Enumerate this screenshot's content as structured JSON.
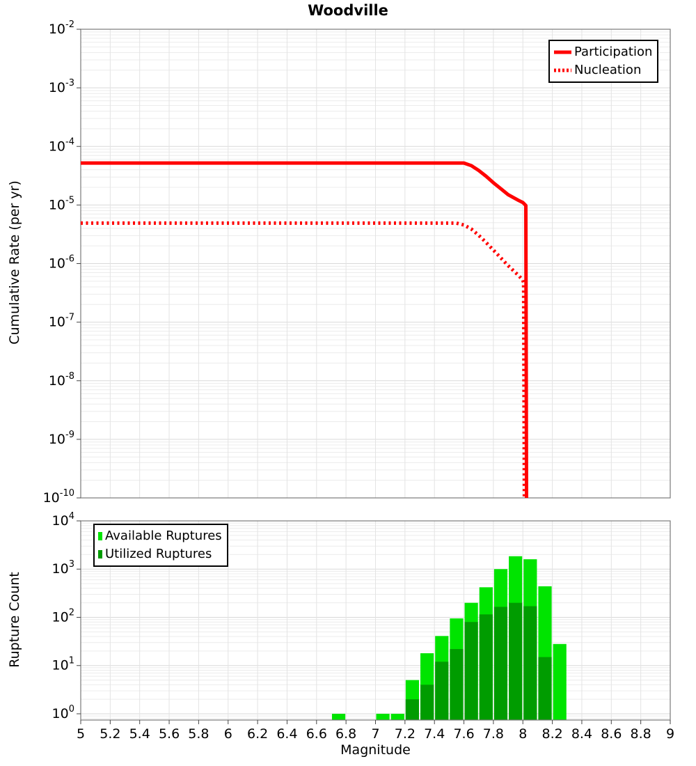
{
  "title": "Woodville",
  "chart_data": [
    {
      "type": "line",
      "title": "Woodville",
      "ylabel": "Cumulative Rate (per yr)",
      "xlabel": "",
      "xlim": [
        5,
        9
      ],
      "ylim": [
        1e-10,
        0.01
      ],
      "ylog": true,
      "grid": true,
      "x_tick_step": 0.2,
      "y_tick_exponents": [
        -2,
        -3,
        -4,
        -5,
        -6,
        -7,
        -8,
        -9,
        -10
      ],
      "legend_position": "top-right",
      "series": [
        {
          "name": "Participation",
          "color": "#ff0000",
          "style": "solid",
          "points": [
            [
              5.0,
              5.2e-05
            ],
            [
              7.6,
              5.2e-05
            ],
            [
              7.65,
              4.7e-05
            ],
            [
              7.7,
              3.9e-05
            ],
            [
              7.75,
              3.1e-05
            ],
            [
              7.8,
              2.4e-05
            ],
            [
              7.85,
              1.9e-05
            ],
            [
              7.9,
              1.5e-05
            ],
            [
              7.97,
              1.2e-05
            ],
            [
              8.0,
              1.1e-05
            ],
            [
              8.02,
              9.8e-06
            ],
            [
              8.025,
              1e-10
            ]
          ]
        },
        {
          "name": "Nucleation",
          "color": "#ff0000",
          "style": "dotted",
          "points": [
            [
              5.0,
              4.9e-06
            ],
            [
              7.55,
              4.9e-06
            ],
            [
              7.6,
              4.55e-06
            ],
            [
              7.65,
              3.9e-06
            ],
            [
              7.7,
              3.05e-06
            ],
            [
              7.75,
              2.3e-06
            ],
            [
              7.8,
              1.7e-06
            ],
            [
              7.85,
              1.25e-06
            ],
            [
              7.9,
              9.2e-07
            ],
            [
              7.97,
              6.3e-07
            ],
            [
              8.0,
              5.2e-07
            ],
            [
              8.005,
              4.7e-07
            ],
            [
              8.01,
              1e-10
            ]
          ]
        }
      ]
    },
    {
      "type": "bar",
      "title": "",
      "ylabel": "Rupture Count",
      "xlabel": "Magnitude",
      "xlim": [
        5,
        9
      ],
      "ylim": [
        1,
        10000
      ],
      "ylog": true,
      "grid": true,
      "bin_width": 0.1,
      "x_tick_step": 0.2,
      "x_tick_labels": [
        "5",
        "5.2",
        "5.4",
        "5.6",
        "5.8",
        "6",
        "6.2",
        "6.4",
        "6.6",
        "6.8",
        "7",
        "7.2",
        "7.4",
        "7.6",
        "7.8",
        "8",
        "8.2",
        "8.4",
        "8.6",
        "8.8",
        "9"
      ],
      "y_tick_exponents": [
        4,
        3,
        2,
        1,
        0
      ],
      "legend_position": "top-left",
      "series": [
        {
          "name": "Available Ruptures",
          "color": "#00e400",
          "bins": [
            [
              6.75,
              1
            ],
            [
              7.05,
              1
            ],
            [
              7.15,
              1
            ],
            [
              7.25,
              5
            ],
            [
              7.35,
              18
            ],
            [
              7.45,
              41
            ],
            [
              7.55,
              95
            ],
            [
              7.65,
              200
            ],
            [
              7.75,
              420
            ],
            [
              7.85,
              1000
            ],
            [
              7.95,
              1850
            ],
            [
              8.05,
              1600
            ],
            [
              8.15,
              440
            ],
            [
              8.25,
              28
            ]
          ]
        },
        {
          "name": "Utilized Ruptures",
          "color": "#009c00",
          "bins": [
            [
              7.25,
              2
            ],
            [
              7.35,
              4
            ],
            [
              7.45,
              12
            ],
            [
              7.55,
              22
            ],
            [
              7.65,
              80
            ],
            [
              7.75,
              115
            ],
            [
              7.85,
              165
            ],
            [
              7.95,
              200
            ],
            [
              8.05,
              170
            ],
            [
              8.15,
              15
            ]
          ]
        }
      ]
    }
  ]
}
